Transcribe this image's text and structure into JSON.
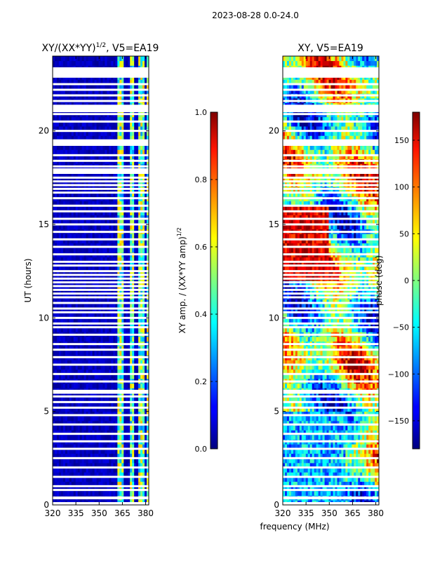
{
  "figure": {
    "suptitle": "2023-08-28 0.0-24.0",
    "xlabel_shared": "frequency (MHz)"
  },
  "chart_data": [
    {
      "type": "heatmap",
      "title_main": "XY/(XX*YY)",
      "title_sup": "1/2",
      "title_tail": ", V5=EA19",
      "xlabel": "",
      "ylabel": "UT (hours)",
      "xlim": [
        320,
        382
      ],
      "ylim": [
        0,
        24
      ],
      "xticks": [
        "320",
        "335",
        "350",
        "365",
        "380"
      ],
      "xtick_values": [
        320,
        335,
        350,
        365,
        380
      ],
      "yticks": [
        "0",
        "5",
        "10",
        "15",
        "20"
      ],
      "ytick_values": [
        0,
        5,
        10,
        15,
        20
      ],
      "colormap": "jet",
      "bright_bands_mhz": [
        [
          362,
          366
        ],
        [
          370,
          373
        ],
        [
          375,
          379
        ],
        [
          380,
          382
        ]
      ],
      "colorbar": {
        "label_main": "XY amp. / (XX*YY amp)",
        "label_sup": "1/2",
        "range": [
          0.0,
          1.0
        ],
        "ticks": [
          "0.0",
          "0.2",
          "0.4",
          "0.6",
          "0.8",
          "1.0"
        ],
        "tick_values": [
          0.0,
          0.2,
          0.4,
          0.6,
          0.8,
          1.0
        ]
      }
    },
    {
      "type": "heatmap",
      "title": "XY, V5=EA19",
      "xlabel": "frequency (MHz)",
      "ylabel": "",
      "xlim": [
        320,
        382
      ],
      "ylim": [
        0,
        24
      ],
      "xticks": [
        "320",
        "335",
        "350",
        "365",
        "380"
      ],
      "xtick_values": [
        320,
        335,
        350,
        365,
        380
      ],
      "yticks": [
        "0",
        "5",
        "10",
        "15",
        "20"
      ],
      "ytick_values": [
        0,
        5,
        10,
        15,
        20
      ],
      "colormap": "jet",
      "colorbar": {
        "label": "phase (deg)",
        "range": [
          -180,
          180
        ],
        "ticks": [
          "−150",
          "−100",
          "−50",
          "0",
          "50",
          "100",
          "150"
        ],
        "tick_values": [
          -150,
          -100,
          -50,
          0,
          50,
          100,
          150
        ]
      }
    }
  ],
  "flagged_ut_rows": [
    0.8,
    1.0,
    1.5,
    2.0,
    2.5,
    3.0,
    3.4,
    3.8,
    4.3,
    4.8,
    5.2,
    5.5,
    5.8,
    6.0,
    6.1,
    6.6,
    7.0,
    7.5,
    7.9,
    8.3,
    8.6,
    9.1,
    9.5,
    9.7,
    10.0,
    10.3,
    10.5,
    10.8,
    11.1,
    11.3,
    11.5,
    11.7,
    11.9,
    12.1,
    12.3,
    12.5,
    12.8,
    13.0,
    13.4,
    13.8,
    14.2,
    14.6,
    15.0,
    15.3,
    15.7,
    16.0,
    16.4,
    16.7,
    16.9,
    17.1,
    17.3,
    17.5,
    18.1,
    18.4,
    18.7,
    19.3,
    20.0,
    20.5,
    20.9,
    21.6,
    21.9,
    22.2,
    22.5,
    22.9
  ],
  "flagged_ut_blocks": [
    [
      0.0,
      0.15
    ],
    [
      0.3,
      0.45
    ],
    [
      17.7,
      18.0
    ],
    [
      19.2,
      19.55
    ],
    [
      21.0,
      21.4
    ],
    [
      22.9,
      23.4
    ]
  ]
}
